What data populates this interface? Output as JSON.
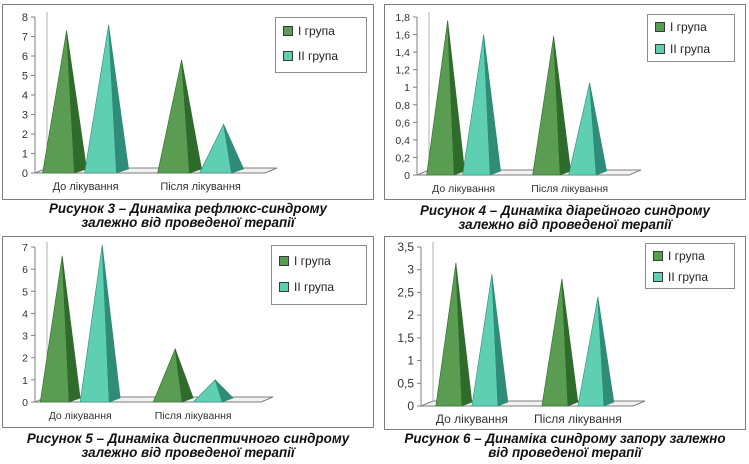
{
  "colors": {
    "group1": "#5a9c52",
    "group1_dark": "#2f6b2a",
    "group2": "#5fcfb1",
    "group2_dark": "#2e8c78",
    "axis": "#7f7f7f"
  },
  "chart_data": [
    {
      "type": "bar",
      "shape": "pyramid",
      "categories": [
        "До лікування",
        "Після лікування"
      ],
      "series": [
        {
          "name": "І група",
          "values": [
            7.3,
            5.8
          ]
        },
        {
          "name": "ІІ група",
          "values": [
            7.6,
            2.5
          ]
        }
      ],
      "ylim": [
        0,
        8
      ],
      "yticks": [
        "0",
        "1",
        "2",
        "3",
        "4",
        "5",
        "6",
        "7",
        "8"
      ],
      "legend": "top-right",
      "caption": [
        "Рисунок 3 – Динаміка рефлюкс-синдрому",
        "залежно від проведеної терапії"
      ]
    },
    {
      "type": "bar",
      "shape": "pyramid",
      "categories": [
        "До лікування",
        "Після лікування"
      ],
      "series": [
        {
          "name": "І група",
          "values": [
            1.76,
            1.58
          ]
        },
        {
          "name": "ІІ група",
          "values": [
            1.6,
            1.05
          ]
        }
      ],
      "ylim": [
        0,
        1.8
      ],
      "yticks": [
        "0",
        "0,2",
        "0,4",
        "0,6",
        "0,8",
        "1",
        "1,2",
        "1,4",
        "1,6",
        "1,8"
      ],
      "legend": "top-right",
      "caption": [
        "Рисунок 4 – Динаміка діарейного синдрому",
        "залежно від проведеної терапії"
      ]
    },
    {
      "type": "bar",
      "shape": "pyramid",
      "categories": [
        "До лікування",
        "Після лікування"
      ],
      "series": [
        {
          "name": "І група",
          "values": [
            6.6,
            2.4
          ]
        },
        {
          "name": "ІІ група",
          "values": [
            7.1,
            1.0
          ]
        }
      ],
      "ylim": [
        0,
        7
      ],
      "yticks": [
        "0",
        "1",
        "2",
        "3",
        "4",
        "5",
        "6",
        "7"
      ],
      "legend": "top-right",
      "caption": [
        "Рисунок 5 – Динаміка диспептичного синдрому",
        "залежно від проведеної терапії"
      ]
    },
    {
      "type": "bar",
      "shape": "pyramid",
      "categories": [
        "До лікування",
        "Після лікування"
      ],
      "series": [
        {
          "name": "І група",
          "values": [
            3.15,
            2.8
          ]
        },
        {
          "name": "ІІ група",
          "values": [
            2.9,
            2.4
          ]
        }
      ],
      "ylim": [
        0,
        3.5
      ],
      "yticks": [
        "0",
        "0,5",
        "1",
        "1,5",
        "2",
        "2,5",
        "3",
        "3,5"
      ],
      "legend": "top-right",
      "caption": [
        "Рисунок 6 – Динаміка синдрому запору залежно",
        "від проведеної терапії"
      ]
    }
  ]
}
